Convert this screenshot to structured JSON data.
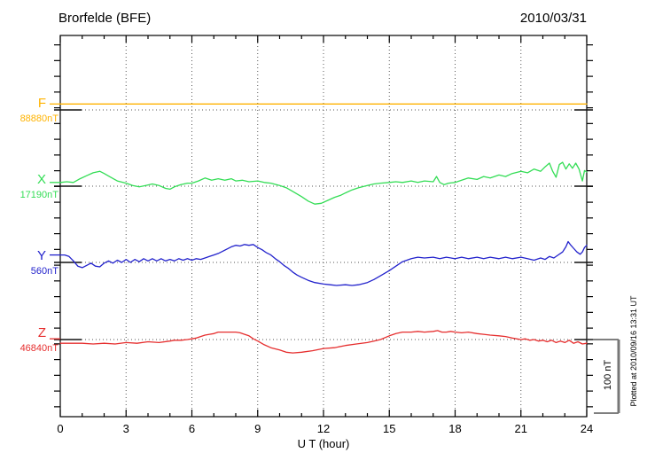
{
  "header": {
    "title": "Brorfelde (BFE)",
    "date": "2010/03/31"
  },
  "xaxis": {
    "label": "U T (hour)",
    "ticks": [
      "0",
      "3",
      "6",
      "9",
      "12",
      "15",
      "18",
      "21",
      "24"
    ]
  },
  "scalebar": {
    "label": "100 nT"
  },
  "note": "Plotted at 2010/09/16 13:31 UT",
  "colors": {
    "frame": "#000000",
    "grid_dotted": "#555555",
    "baseline_solid": "#111111",
    "scalebar_bar": "#777777"
  },
  "chart_data": {
    "type": "line",
    "title": "Brorfelde (BFE)",
    "date": "2010/03/31",
    "xlabel": "U T (hour)",
    "x_range": [
      0,
      24
    ],
    "x_major_ticks": [
      0,
      3,
      6,
      9,
      12,
      15,
      18,
      21,
      24
    ],
    "x_minor_tick_step_hours": 1,
    "yaxis": {
      "numeric_labels": false,
      "scale_bar_nT": 100
    },
    "grid": {
      "vertical_dotted_every_hours": 3,
      "horizontal_dotted_baseline_per_component": true
    },
    "scale_bar": {
      "label": "100 nT",
      "nT": 100
    },
    "note": "Plotted at 2010/09/16 13:31 UT",
    "series": [
      {
        "name": "F",
        "label": "F",
        "baseline_label": "88880nT",
        "baseline_nT": 88880,
        "color": "#FFB300",
        "leadin_offset_nT": 8,
        "points_h_offsetnT": [
          [
            0,
            8
          ],
          [
            4,
            8
          ],
          [
            8,
            8
          ],
          [
            12,
            8
          ],
          [
            16,
            8
          ],
          [
            20,
            8
          ],
          [
            24,
            8
          ]
        ]
      },
      {
        "name": "X",
        "label": "X",
        "baseline_label": "17190nT",
        "baseline_nT": 17190,
        "color": "#33DD55",
        "leadin_offset_nT": 5,
        "points_h_offsetnT": [
          [
            0,
            5
          ],
          [
            0.3,
            6
          ],
          [
            0.6,
            5
          ],
          [
            0.9,
            10
          ],
          [
            1.2,
            14
          ],
          [
            1.5,
            18
          ],
          [
            1.8,
            20
          ],
          [
            2,
            17
          ],
          [
            2.3,
            12
          ],
          [
            2.6,
            7
          ],
          [
            3,
            4
          ],
          [
            3.3,
            1
          ],
          [
            3.6,
            -1
          ],
          [
            3.9,
            1
          ],
          [
            4.2,
            3
          ],
          [
            4.5,
            1
          ],
          [
            4.8,
            -3
          ],
          [
            5,
            -4
          ],
          [
            5.2,
            -1
          ],
          [
            5.5,
            2
          ],
          [
            5.8,
            4
          ],
          [
            6,
            4
          ],
          [
            6.3,
            7
          ],
          [
            6.6,
            11
          ],
          [
            6.9,
            8
          ],
          [
            7.2,
            10
          ],
          [
            7.5,
            8
          ],
          [
            7.8,
            10
          ],
          [
            8,
            7
          ],
          [
            8.3,
            8
          ],
          [
            8.6,
            6
          ],
          [
            9,
            7
          ],
          [
            9.3,
            5
          ],
          [
            9.6,
            4
          ],
          [
            10,
            1
          ],
          [
            10.3,
            -2
          ],
          [
            10.6,
            -7
          ],
          [
            11,
            -14
          ],
          [
            11.3,
            -20
          ],
          [
            11.6,
            -24
          ],
          [
            11.9,
            -23
          ],
          [
            12.2,
            -19
          ],
          [
            12.5,
            -15
          ],
          [
            12.8,
            -12
          ],
          [
            13,
            -9
          ],
          [
            13.3,
            -5
          ],
          [
            13.6,
            -2
          ],
          [
            14,
            1
          ],
          [
            14.3,
            3
          ],
          [
            14.6,
            4
          ],
          [
            15,
            5
          ],
          [
            15.3,
            6
          ],
          [
            15.6,
            5
          ],
          [
            16,
            7
          ],
          [
            16.3,
            5
          ],
          [
            16.6,
            7
          ],
          [
            17,
            6
          ],
          [
            17.15,
            13
          ],
          [
            17.3,
            5
          ],
          [
            17.5,
            2
          ],
          [
            17.7,
            4
          ],
          [
            18,
            5
          ],
          [
            18.3,
            8
          ],
          [
            18.6,
            11
          ],
          [
            19,
            9
          ],
          [
            19.3,
            13
          ],
          [
            19.6,
            11
          ],
          [
            20,
            15
          ],
          [
            20.3,
            13
          ],
          [
            20.6,
            17
          ],
          [
            21,
            20
          ],
          [
            21.3,
            18
          ],
          [
            21.6,
            23
          ],
          [
            21.9,
            20
          ],
          [
            22.1,
            26
          ],
          [
            22.3,
            31
          ],
          [
            22.45,
            20
          ],
          [
            22.6,
            12
          ],
          [
            22.75,
            29
          ],
          [
            22.9,
            32
          ],
          [
            23.05,
            23
          ],
          [
            23.2,
            30
          ],
          [
            23.35,
            24
          ],
          [
            23.5,
            31
          ],
          [
            23.65,
            23
          ],
          [
            23.8,
            7
          ],
          [
            23.9,
            21
          ],
          [
            24,
            19
          ]
        ]
      },
      {
        "name": "Y",
        "label": "Y",
        "baseline_label": "560nT",
        "baseline_nT": 560,
        "color": "#2222CC",
        "leadin_offset_nT": 10,
        "points_h_offsetnT": [
          [
            0,
            10
          ],
          [
            0.2,
            10
          ],
          [
            0.4,
            8
          ],
          [
            0.6,
            2
          ],
          [
            0.8,
            -5
          ],
          [
            1,
            -7
          ],
          [
            1.2,
            -4
          ],
          [
            1.4,
            -1
          ],
          [
            1.6,
            -5
          ],
          [
            1.8,
            -6
          ],
          [
            2,
            -1
          ],
          [
            2.2,
            2
          ],
          [
            2.4,
            -1
          ],
          [
            2.6,
            3
          ],
          [
            2.8,
            0
          ],
          [
            3,
            4
          ],
          [
            3.2,
            0
          ],
          [
            3.4,
            4
          ],
          [
            3.6,
            1
          ],
          [
            3.8,
            5
          ],
          [
            4,
            2
          ],
          [
            4.2,
            5
          ],
          [
            4.4,
            2
          ],
          [
            4.6,
            5
          ],
          [
            4.8,
            2
          ],
          [
            5,
            4
          ],
          [
            5.2,
            2
          ],
          [
            5.4,
            5
          ],
          [
            5.6,
            3
          ],
          [
            5.8,
            5
          ],
          [
            6,
            3
          ],
          [
            6.2,
            5
          ],
          [
            6.4,
            4
          ],
          [
            6.6,
            6
          ],
          [
            6.8,
            8
          ],
          [
            7,
            10
          ],
          [
            7.2,
            12
          ],
          [
            7.4,
            15
          ],
          [
            7.6,
            18
          ],
          [
            7.8,
            21
          ],
          [
            8,
            23
          ],
          [
            8.2,
            22
          ],
          [
            8.4,
            24
          ],
          [
            8.6,
            23
          ],
          [
            8.8,
            24
          ],
          [
            9,
            20
          ],
          [
            9.2,
            17
          ],
          [
            9.4,
            13
          ],
          [
            9.6,
            10
          ],
          [
            9.8,
            5
          ],
          [
            10,
            1
          ],
          [
            10.2,
            -4
          ],
          [
            10.4,
            -8
          ],
          [
            10.6,
            -13
          ],
          [
            10.8,
            -17
          ],
          [
            11,
            -20
          ],
          [
            11.3,
            -24
          ],
          [
            11.6,
            -27
          ],
          [
            12,
            -29
          ],
          [
            12.3,
            -30
          ],
          [
            12.6,
            -31
          ],
          [
            13,
            -30
          ],
          [
            13.3,
            -31
          ],
          [
            13.6,
            -30
          ],
          [
            14,
            -27
          ],
          [
            14.3,
            -23
          ],
          [
            14.6,
            -18
          ],
          [
            15,
            -11
          ],
          [
            15.3,
            -5
          ],
          [
            15.6,
            1
          ],
          [
            16,
            5
          ],
          [
            16.3,
            7
          ],
          [
            16.6,
            6
          ],
          [
            17,
            7
          ],
          [
            17.3,
            5
          ],
          [
            17.6,
            7
          ],
          [
            18,
            5
          ],
          [
            18.3,
            7
          ],
          [
            18.6,
            5
          ],
          [
            19,
            7
          ],
          [
            19.3,
            5
          ],
          [
            19.6,
            7
          ],
          [
            20,
            5
          ],
          [
            20.3,
            7
          ],
          [
            20.6,
            5
          ],
          [
            21,
            7
          ],
          [
            21.3,
            5
          ],
          [
            21.6,
            3
          ],
          [
            21.9,
            6
          ],
          [
            22.1,
            4
          ],
          [
            22.3,
            8
          ],
          [
            22.5,
            6
          ],
          [
            22.7,
            10
          ],
          [
            22.9,
            14
          ],
          [
            23.05,
            21
          ],
          [
            23.15,
            28
          ],
          [
            23.25,
            24
          ],
          [
            23.4,
            19
          ],
          [
            23.55,
            14
          ],
          [
            23.7,
            11
          ],
          [
            23.8,
            14
          ],
          [
            23.9,
            20
          ],
          [
            24,
            23
          ]
        ]
      },
      {
        "name": "Z",
        "label": "Z",
        "baseline_label": "46840nT",
        "baseline_nT": 46840,
        "color": "#E62E2E",
        "leadin_offset_nT": 1,
        "points_h_offsetnT": [
          [
            0,
            -5
          ],
          [
            0.5,
            -5
          ],
          [
            1,
            -5
          ],
          [
            1.5,
            -6
          ],
          [
            2,
            -5
          ],
          [
            2.5,
            -6
          ],
          [
            3,
            -4
          ],
          [
            3.5,
            -5
          ],
          [
            4,
            -3
          ],
          [
            4.5,
            -4
          ],
          [
            5,
            -2
          ],
          [
            5.2,
            -1
          ],
          [
            5.5,
            -1
          ],
          [
            5.8,
            0
          ],
          [
            6,
            1
          ],
          [
            6.2,
            2
          ],
          [
            6.4,
            4
          ],
          [
            6.6,
            6
          ],
          [
            6.8,
            7
          ],
          [
            7,
            8
          ],
          [
            7.2,
            10
          ],
          [
            7.5,
            10
          ],
          [
            7.8,
            10
          ],
          [
            8,
            10
          ],
          [
            8.2,
            9
          ],
          [
            8.4,
            7
          ],
          [
            8.6,
            5
          ],
          [
            8.8,
            1
          ],
          [
            9,
            -2
          ],
          [
            9.3,
            -7
          ],
          [
            9.6,
            -11
          ],
          [
            10,
            -14
          ],
          [
            10.3,
            -17
          ],
          [
            10.6,
            -18
          ],
          [
            11,
            -17
          ],
          [
            11.5,
            -15
          ],
          [
            12,
            -12
          ],
          [
            12.5,
            -11
          ],
          [
            13,
            -8
          ],
          [
            13.5,
            -6
          ],
          [
            14,
            -4
          ],
          [
            14.3,
            -2
          ],
          [
            14.6,
            0
          ],
          [
            15,
            5
          ],
          [
            15.3,
            8
          ],
          [
            15.6,
            10
          ],
          [
            16,
            10
          ],
          [
            16.3,
            11
          ],
          [
            16.6,
            10
          ],
          [
            17,
            11
          ],
          [
            17.2,
            12
          ],
          [
            17.4,
            10
          ],
          [
            17.6,
            10
          ],
          [
            17.8,
            11
          ],
          [
            18,
            10
          ],
          [
            18.3,
            9
          ],
          [
            18.6,
            10
          ],
          [
            19,
            8
          ],
          [
            19.3,
            7
          ],
          [
            19.6,
            6
          ],
          [
            20,
            5
          ],
          [
            20.3,
            4
          ],
          [
            20.6,
            2
          ],
          [
            21,
            0
          ],
          [
            21.2,
            1
          ],
          [
            21.4,
            -1
          ],
          [
            21.6,
            0
          ],
          [
            21.8,
            -2
          ],
          [
            22,
            -1
          ],
          [
            22.2,
            -3
          ],
          [
            22.4,
            -1
          ],
          [
            22.6,
            -4
          ],
          [
            22.8,
            -2
          ],
          [
            23,
            -4
          ],
          [
            23.2,
            -1
          ],
          [
            23.4,
            -5
          ],
          [
            23.6,
            -3
          ],
          [
            23.8,
            -6
          ],
          [
            24,
            -5
          ]
        ]
      }
    ]
  }
}
